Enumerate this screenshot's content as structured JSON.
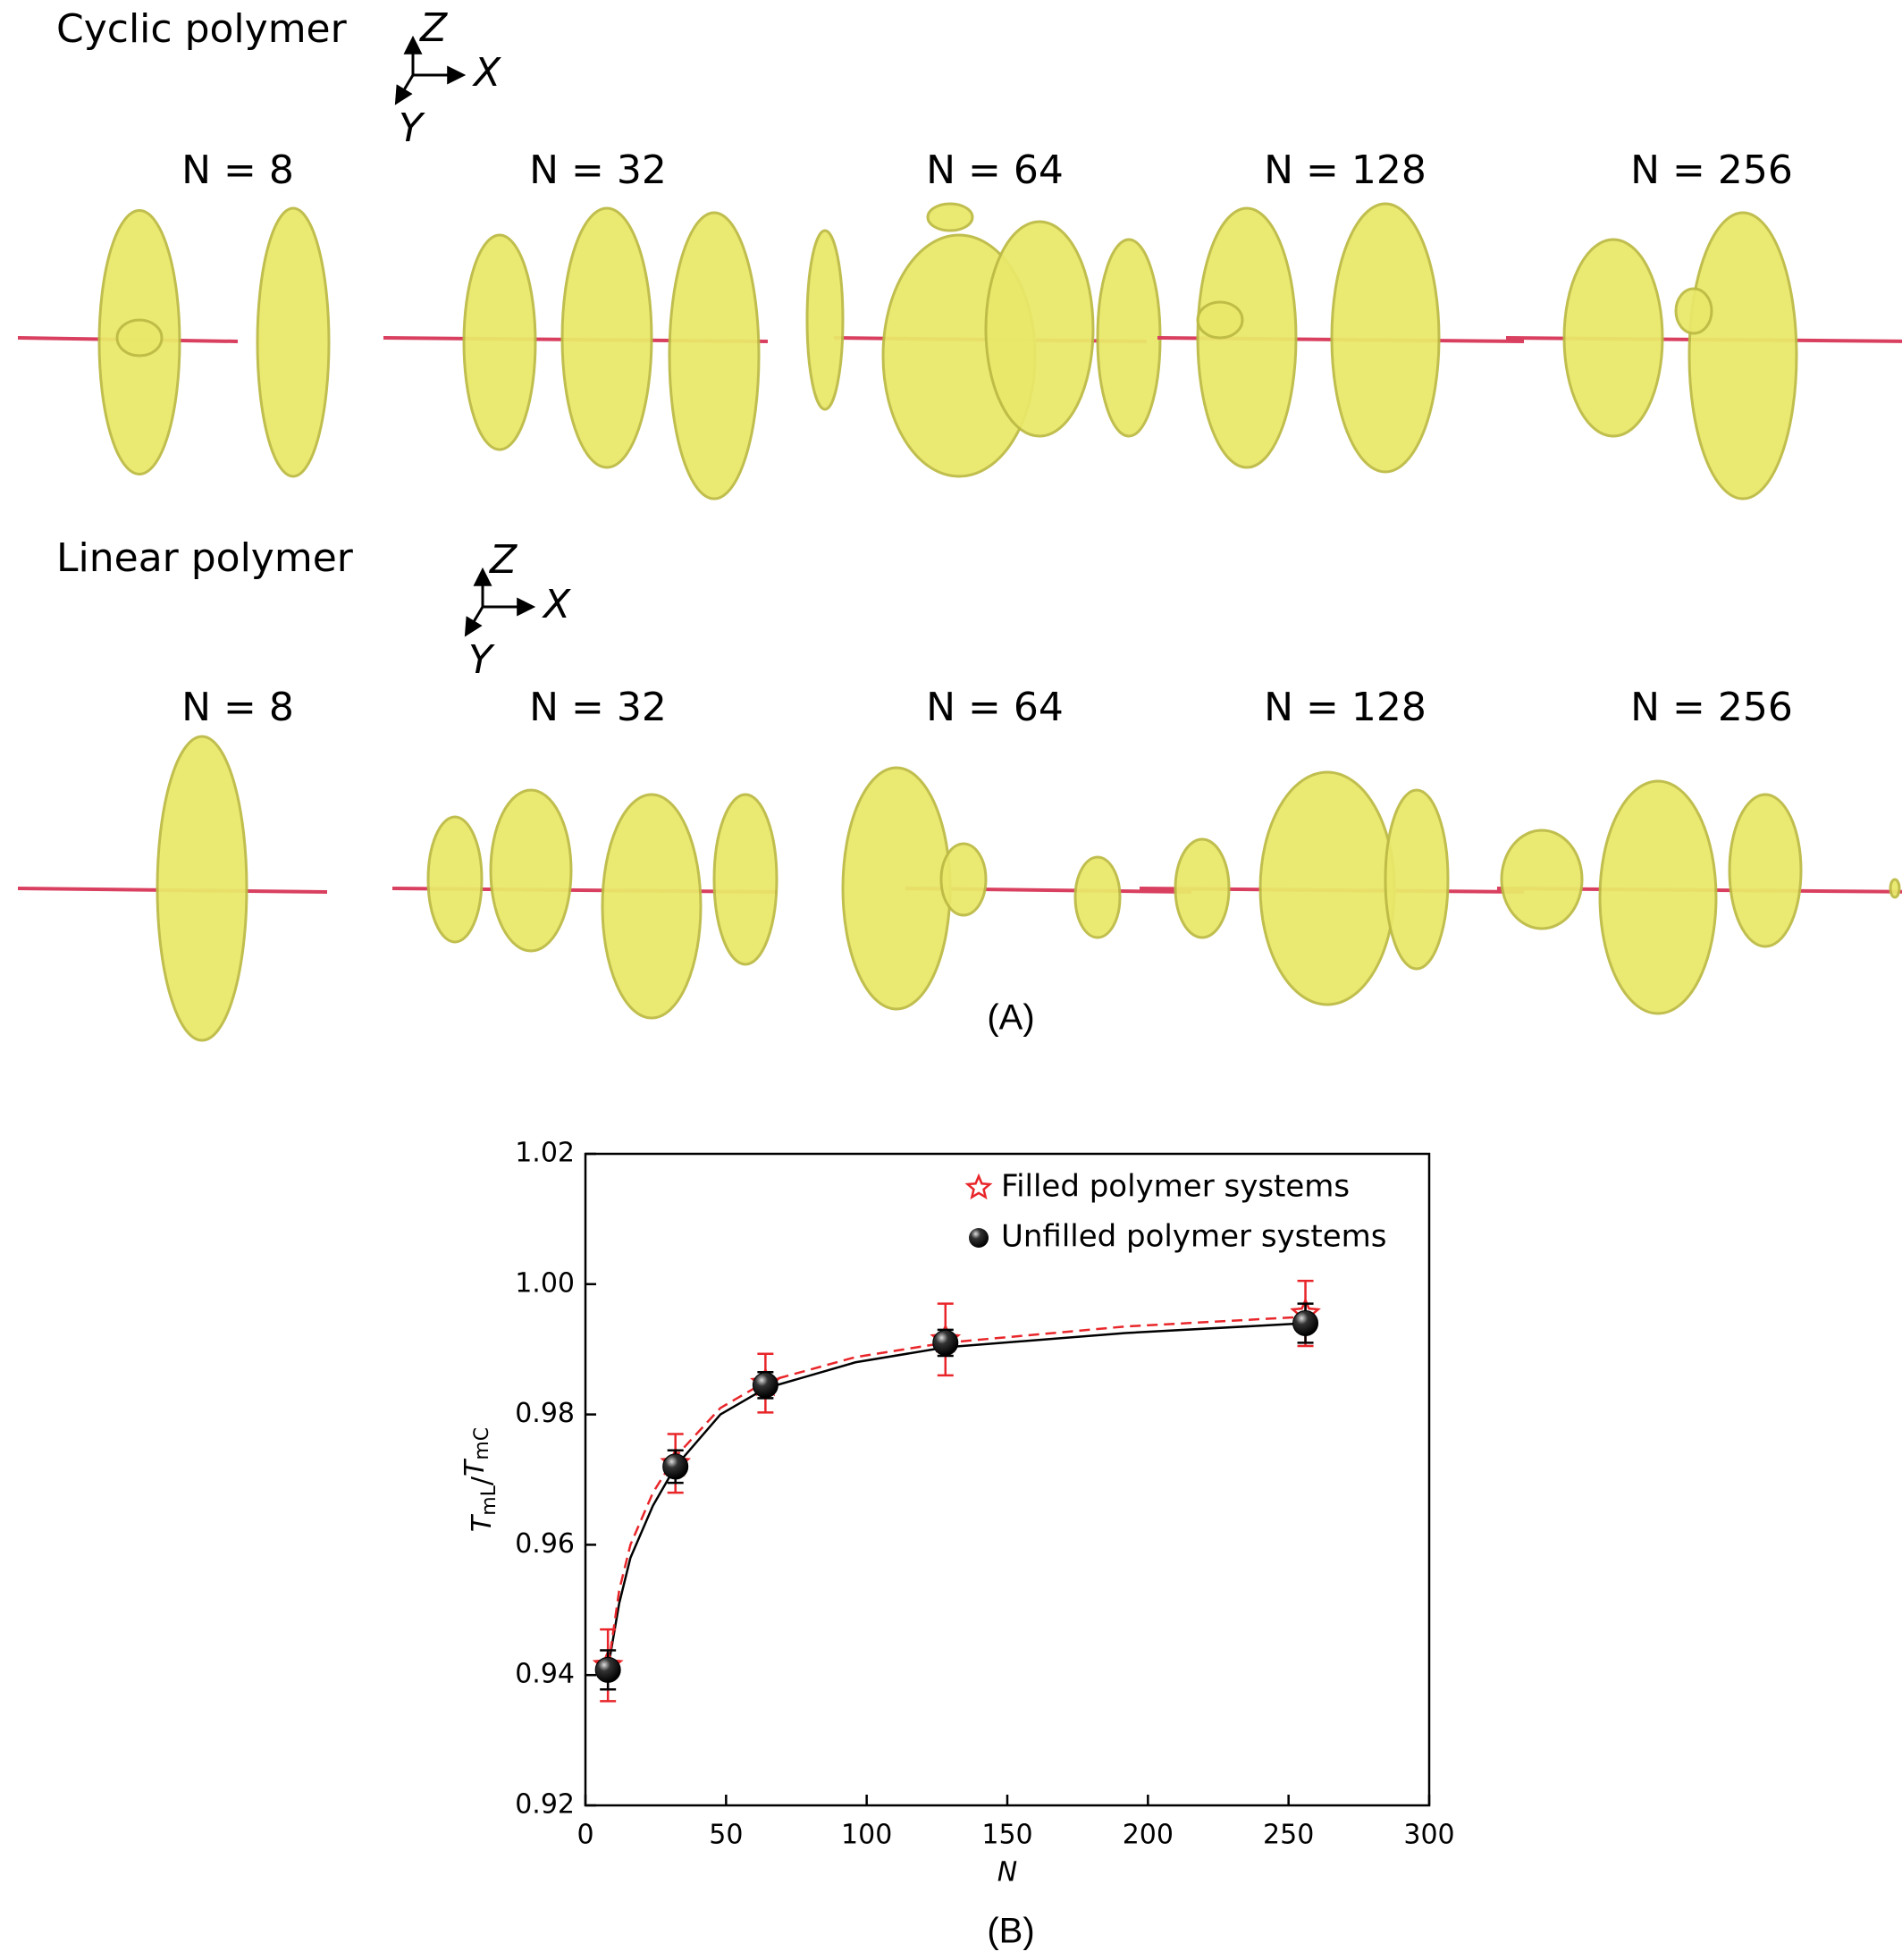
{
  "panel_a": {
    "rows": [
      {
        "title": "Cyclic polymer",
        "axes": [
          "Z",
          "X",
          "Y"
        ],
        "labels": [
          "N = 8",
          "N = 32",
          "N = 64",
          "N = 128",
          "N = 256"
        ]
      },
      {
        "title": "Linear polymer",
        "axes": [
          "Z",
          "X",
          "Y"
        ],
        "labels": [
          "N = 8",
          "N = 32",
          "N = 64",
          "N = 128",
          "N = 256"
        ]
      }
    ],
    "caption": "(A)"
  },
  "chart_data": {
    "type": "scatter",
    "xlabel": "N",
    "ylabel": [
      "T",
      "mL",
      "/",
      "T",
      "mC"
    ],
    "caption": "(B)",
    "xlim": [
      0,
      300
    ],
    "xticks": [
      0,
      50,
      100,
      150,
      200,
      250,
      300
    ],
    "ylim": [
      0.92,
      1.02
    ],
    "yticks": [
      0.92,
      0.94,
      0.96,
      0.98,
      {
        "value": 1,
        "label": "1.00"
      },
      1.02
    ],
    "legend": "upper right",
    "series": [
      {
        "name": "Filled polymer systems",
        "color": "#e8262a",
        "marker": "star",
        "x": [
          8,
          32,
          64,
          128,
          256
        ],
        "values": [
          0.9415,
          0.9725,
          0.9848,
          0.9915,
          0.9955
        ],
        "errors": [
          0.0055,
          0.0045,
          0.0045,
          0.0055,
          0.005
        ]
      },
      {
        "name": "Unfilled polymer systems",
        "color": "#000000",
        "marker": "sphere",
        "x": [
          8,
          32,
          64,
          128,
          256
        ],
        "values": [
          0.9408,
          0.972,
          0.9845,
          0.991,
          0.994
        ],
        "errors": [
          0.003,
          0.0025,
          0.002,
          0.002,
          0.003
        ]
      }
    ],
    "fits": [
      {
        "color": "#000000",
        "style": "solid",
        "x": [
          8,
          12,
          16,
          24,
          32,
          48,
          64,
          96,
          128,
          192,
          256
        ],
        "values": [
          0.941,
          0.951,
          0.958,
          0.966,
          0.972,
          0.98,
          0.984,
          0.988,
          0.9903,
          0.9925,
          0.994
        ]
      },
      {
        "color": "#e8262a",
        "style": "dashed",
        "x": [
          8,
          12,
          16,
          24,
          32,
          48,
          64,
          96,
          128,
          192,
          256
        ],
        "values": [
          0.941,
          0.953,
          0.96,
          0.968,
          0.9735,
          0.981,
          0.985,
          0.9888,
          0.991,
          0.9935,
          0.995
        ]
      }
    ]
  }
}
